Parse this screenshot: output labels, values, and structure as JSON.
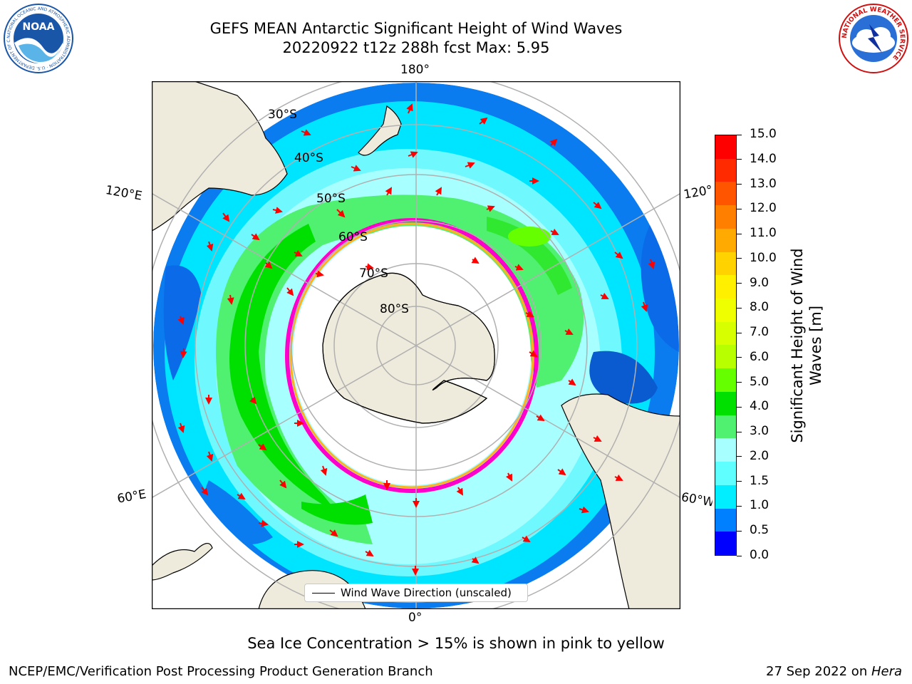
{
  "header": {
    "title_line1": "GEFS MEAN Antarctic Significant Height of Wind Waves",
    "title_line2": "20220922 t12z 288h fcst   Max: 5.95"
  },
  "logos": {
    "left": {
      "name": "noaa-logo",
      "text": "NOAA",
      "ring_text": "NATIONAL OCEANIC AND ATMOSPHERIC ADMINISTRATION · U.S. DEPARTMENT OF COMMERCE",
      "color": "#1a56a8"
    },
    "right": {
      "name": "nws-logo",
      "ring_text": "NATIONAL WEATHER SERVICE",
      "color": "#d01010"
    }
  },
  "map": {
    "longitude_labels": {
      "top": "180°",
      "upper_left": "120°E",
      "upper_right": "120°",
      "lower_left": "60°E",
      "lower_right": "60°W",
      "bottom": "0°"
    },
    "latitude_labels": [
      "30°S",
      "40°S",
      "50°S",
      "60°S",
      "70°S",
      "80°S"
    ],
    "colors": {
      "land": "#efebdc",
      "ocean_low": "#00e5ff",
      "ice_edge": "#ff00cc"
    }
  },
  "legend": {
    "label": "Wind Wave Direction (unscaled)"
  },
  "colorbar": {
    "label": "Significant Height of Wind Waves [m]",
    "label_line1": "Significant Height of Wind",
    "label_line2": "Waves [m]",
    "ticks": [
      "15.0",
      "14.0",
      "13.0",
      "12.0",
      "11.0",
      "10.0",
      "9.0",
      "8.0",
      "7.0",
      "6.0",
      "5.0",
      "4.0",
      "3.0",
      "2.0",
      "1.5",
      "1.0",
      "0.5",
      "0.0"
    ],
    "colors": [
      "#ff0000",
      "#ff2a00",
      "#ff5500",
      "#ff8000",
      "#ffaa00",
      "#ffd200",
      "#fff000",
      "#f0ff00",
      "#d8ff00",
      "#b8ff00",
      "#66ff00",
      "#00e000",
      "#50f070",
      "#a8ffff",
      "#60ffff",
      "#00eeff",
      "#0080ff",
      "#0000ff"
    ]
  },
  "caption": "Sea Ice Concentration > 15% is shown in pink to yellow",
  "footer": {
    "left": "NCEP/EMC/Verification Post Processing Product Generation Branch",
    "right_date": "27 Sep 2022 on ",
    "right_host": "Hera"
  }
}
